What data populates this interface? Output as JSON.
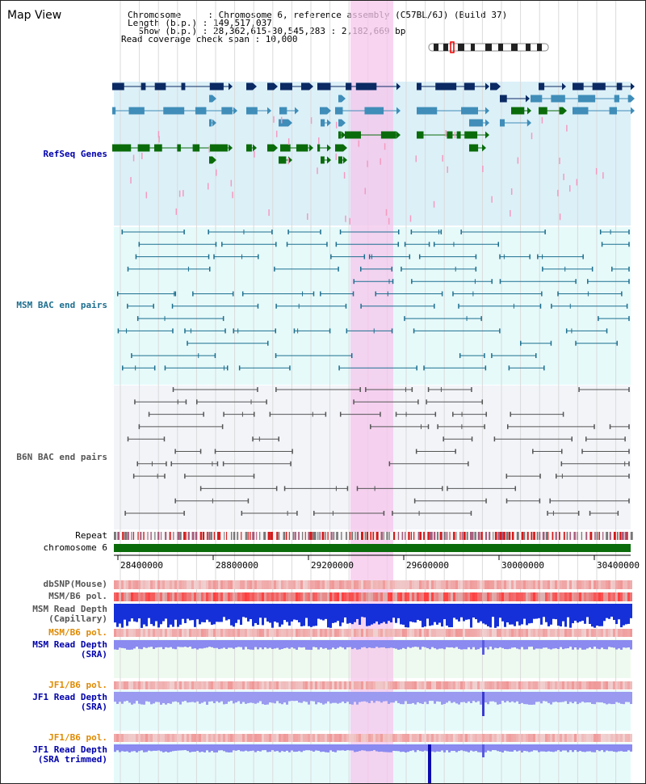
{
  "view": {
    "title": "Map View",
    "info_lines": [
      "Chromosome     : Chromosome 6, reference assembly (C57BL/6J) (Build 37)",
      "Length (b.p.) : 149,517,037",
      "  Show (b.p.) : 28,362,615-30,545,283 : 2,182,669 bp",
      "Read coverage check span : 10,000"
    ]
  },
  "tracks": {
    "refseq_genes": "RefSeq Genes",
    "msm_bac": "MSM BAC end pairs",
    "b6n_bac": "B6N BAC end pairs",
    "repeat": "Repeat",
    "chromosome": "chromosome 6",
    "dbsnp": "dbSNP(Mouse)",
    "msm_b6_pol_1": "MSM/B6 pol.",
    "msm_read_depth_cap": "MSM Read Depth\n(Capillary)",
    "msm_b6_pol_2": "MSM/B6 pol.",
    "msm_read_depth_sra": "MSM Read Depth\n(SRA)",
    "jf1_b6_pol_1": "JF1/B6 pol.",
    "jf1_read_depth_sra": "JF1 Read Depth\n(SRA)",
    "jf1_b6_pol_2": "JF1/B6 pol.",
    "jf1_read_depth_trim": "JF1 Read Depth\n(SRA trimmed)"
  },
  "axis": {
    "ticks": [
      "28400000",
      "28800000",
      "29200000",
      "29600000",
      "30000000",
      "30400000"
    ]
  },
  "colors": {
    "gene_dark": "#0b2a63",
    "gene_mid": "#3f8db8",
    "gene_green": "#0a6b0a",
    "msm_bac": "#1d6f8f",
    "b6n_bac": "#555555",
    "highlight": "#f6c6ec",
    "label_blue": "#0000aa",
    "label_orange": "#e08a00"
  }
}
